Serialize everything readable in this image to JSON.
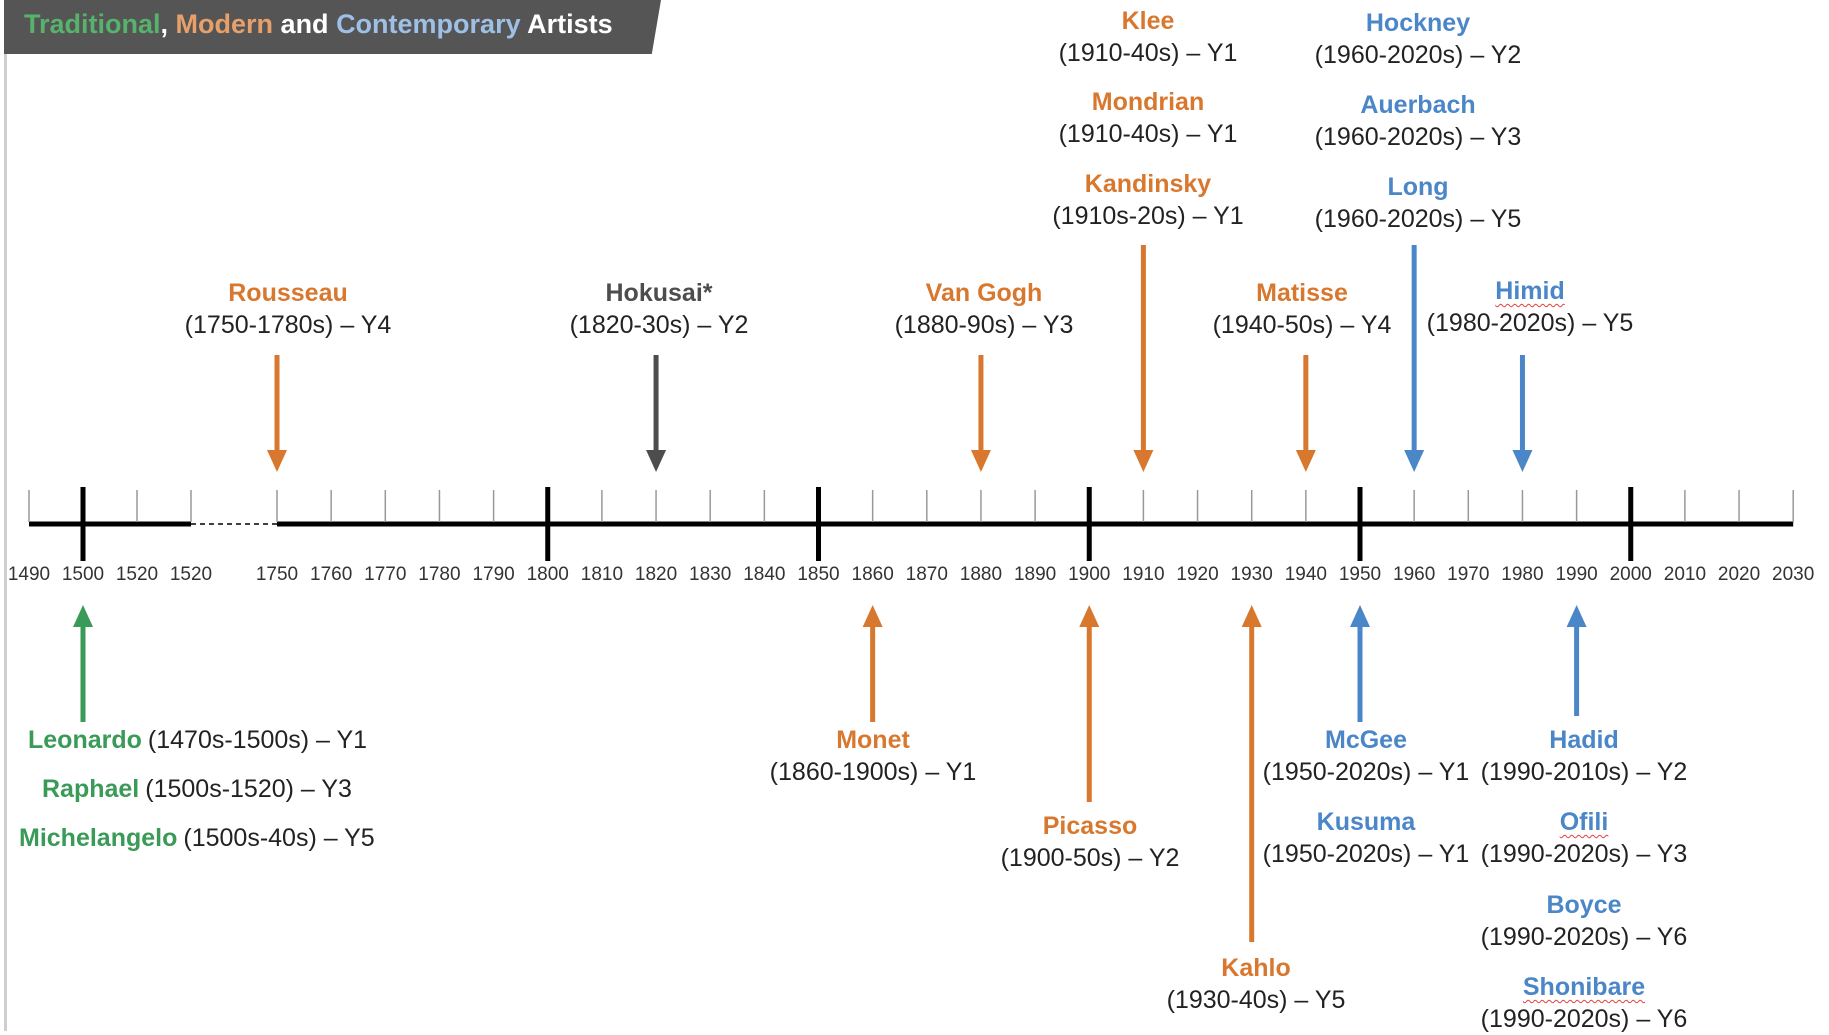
{
  "title": {
    "parts": [
      {
        "text": "Traditional",
        "color": "#57b26b"
      },
      {
        "text": ", ",
        "color": "#ffffff"
      },
      {
        "text": "Modern",
        "color": "#e7a06a"
      },
      {
        "text": " and ",
        "color": "#ffffff"
      },
      {
        "text": "Contemporary",
        "color": "#9fc0e6"
      },
      {
        "text": " Artists",
        "color": "#ffffff"
      }
    ]
  },
  "colors": {
    "traditional": "#3a9a58",
    "modern": "#d8782f",
    "contemporary": "#4a86c8",
    "other": "#4d4d4d",
    "axis": "#000000"
  },
  "axis": {
    "segment_early": {
      "start": 1490,
      "end": 1520
    },
    "segment_main": {
      "start": 1750,
      "end": 2030
    },
    "labels_early": [
      "1490",
      "1500",
      "1520",
      "1520"
    ],
    "major_years": [
      1500,
      1800,
      1850,
      1900,
      1950,
      2000
    ]
  },
  "artists": [
    {
      "name": "Leonardo",
      "range": "(1470s-1500s) – Y1",
      "group": "traditional",
      "year": 1500,
      "side": "below",
      "inline": true
    },
    {
      "name": "Raphael",
      "range": "(1500s-1520) – Y3",
      "group": "traditional",
      "year": null,
      "side": "below",
      "inline": true
    },
    {
      "name": "Michelangelo",
      "range": "(1500s-40s) – Y5",
      "group": "traditional",
      "year": null,
      "side": "below",
      "inline": true
    },
    {
      "name": "Rousseau",
      "range": "(1750-1780s) – Y4",
      "group": "modern",
      "year": 1750,
      "side": "above"
    },
    {
      "name": "Hokusai*",
      "range": "(1820-30s) – Y2",
      "group": "other",
      "year": 1820,
      "side": "above"
    },
    {
      "name": "Van Gogh",
      "range": "(1880-90s) – Y3",
      "group": "modern",
      "year": 1880,
      "side": "above"
    },
    {
      "name": "Klee",
      "range": "(1910-40s) – Y1",
      "group": "modern",
      "year": null,
      "side": "above"
    },
    {
      "name": "Mondrian",
      "range": "(1910-40s) – Y1",
      "group": "modern",
      "year": null,
      "side": "above"
    },
    {
      "name": "Kandinsky",
      "range": "(1910s-20s) – Y1",
      "group": "modern",
      "year": 1910,
      "side": "above"
    },
    {
      "name": "Matisse",
      "range": "(1940-50s) – Y4",
      "group": "modern",
      "year": 1940,
      "side": "above"
    },
    {
      "name": "Hockney",
      "range": "(1960-2020s) – Y2",
      "group": "contemporary",
      "year": null,
      "side": "above"
    },
    {
      "name": "Auerbach",
      "range": "(1960-2020s) – Y3",
      "group": "contemporary",
      "year": null,
      "side": "above"
    },
    {
      "name": "Long",
      "range": "(1960-2020s) – Y5",
      "group": "contemporary",
      "year": 1960,
      "side": "above"
    },
    {
      "name": "Himid",
      "range": "(1980-2020s) – Y5",
      "group": "contemporary",
      "year": 1980,
      "side": "above",
      "wavy": true
    },
    {
      "name": "Monet",
      "range": "(1860-1900s) – Y1",
      "group": "modern",
      "year": 1860,
      "side": "below"
    },
    {
      "name": "Picasso",
      "range": "(1900-50s) – Y2",
      "group": "modern",
      "year": 1900,
      "side": "below"
    },
    {
      "name": "Kahlo",
      "range": "(1930-40s) – Y5",
      "group": "modern",
      "year": 1930,
      "side": "below"
    },
    {
      "name": "McGee",
      "range": "(1950-2020s) – Y1",
      "group": "contemporary",
      "year": 1950,
      "side": "below"
    },
    {
      "name": "Kusuma",
      "range": "(1950-2020s) – Y1",
      "group": "contemporary",
      "year": null,
      "side": "below"
    },
    {
      "name": "Hadid",
      "range": "(1990-2010s) – Y2",
      "group": "contemporary",
      "year": 1990,
      "side": "below"
    },
    {
      "name": "Ofili",
      "range": "(1990-2020s) – Y3",
      "group": "contemporary",
      "year": null,
      "side": "below",
      "wavy": true
    },
    {
      "name": "Boyce",
      "range": "(1990-2020s) – Y6",
      "group": "contemporary",
      "year": null,
      "side": "below"
    },
    {
      "name": "Shonibare",
      "range": "(1990-2020s) – Y6",
      "group": "contemporary",
      "year": null,
      "side": "below",
      "wavy": true
    }
  ]
}
